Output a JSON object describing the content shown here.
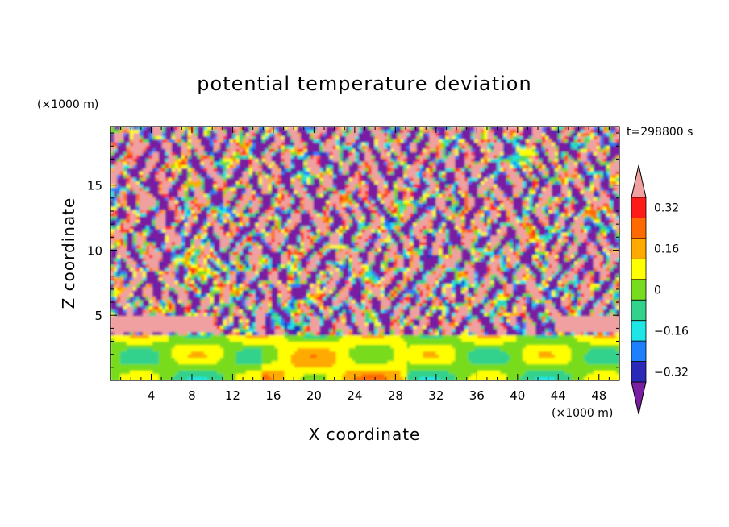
{
  "chart_data": {
    "type": "heatmap",
    "title": "potential temperature deviation",
    "xlabel": "X coordinate",
    "ylabel": "Z coordinate",
    "x_unit": "(×1000 m)",
    "y_unit": "(×1000 m)",
    "time_label": "t=298800 s",
    "xlim": [
      0,
      50
    ],
    "ylim": [
      0,
      19.5
    ],
    "x_ticks": [
      4,
      8,
      12,
      16,
      20,
      24,
      28,
      32,
      36,
      40,
      44,
      48
    ],
    "y_ticks": [
      5,
      10,
      15
    ],
    "colorbar": {
      "levels": [
        -0.4,
        -0.32,
        -0.24,
        -0.16,
        -0.08,
        0,
        0.08,
        0.16,
        0.24,
        0.32,
        0.4
      ],
      "tick_labels": [
        "0.32",
        "0.16",
        "0",
        "−0.16",
        "−0.32"
      ],
      "tick_values": [
        0.32,
        0.16,
        0,
        -0.16,
        -0.32
      ],
      "colors": [
        "#7a1fa2",
        "#2a2ab8",
        "#1e7fff",
        "#1ee6e6",
        "#32d28c",
        "#78dc1e",
        "#ffff00",
        "#ffaa00",
        "#ff6a00",
        "#ff1a1a",
        "#f0a0a0"
      ]
    },
    "x_tick_labels": [
      "4",
      "8",
      "12",
      "16",
      "20",
      "24",
      "28",
      "32",
      "36",
      "40",
      "44",
      "48"
    ],
    "y_tick_labels": [
      "5",
      "10",
      "15"
    ]
  }
}
